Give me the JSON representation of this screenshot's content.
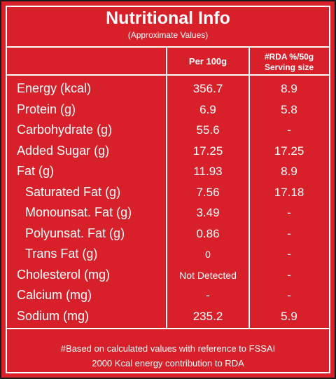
{
  "header": {
    "title": "Nutritional Info",
    "subtitle": "(Approximate Values)"
  },
  "table": {
    "columns": [
      "Per 100g",
      "#RDA %/50g",
      "Serving size"
    ],
    "rows": [
      [
        "Energy (kcal)",
        "356.7",
        "8.9"
      ],
      [
        "Protein (g)",
        "6.9",
        "5.8"
      ],
      [
        "Carbohydrate (g)",
        "55.6",
        "-"
      ],
      [
        "Added Sugar (g)",
        "17.25",
        "17.25"
      ],
      [
        "Fat (g)",
        "11.93",
        "8.9"
      ],
      [
        "Saturated Fat (g)",
        "7.56",
        "17.18"
      ],
      [
        "Monounsat. Fat (g)",
        "3.49",
        "-"
      ],
      [
        "Polyunsat. Fat (g)",
        "0.86",
        "-"
      ],
      [
        "Trans Fat (g)",
        "0",
        "-"
      ],
      [
        "Cholesterol (mg)",
        "Not Detected",
        "-"
      ],
      [
        "Calcium (mg)",
        "-",
        "-"
      ],
      [
        "Sodium (mg)",
        "235.2",
        "5.9"
      ]
    ]
  },
  "footer": {
    "lines": [
      "#Based on calculated values with reference to FSSAI",
      "2000 Kcal energy contribution to RDA"
    ]
  }
}
